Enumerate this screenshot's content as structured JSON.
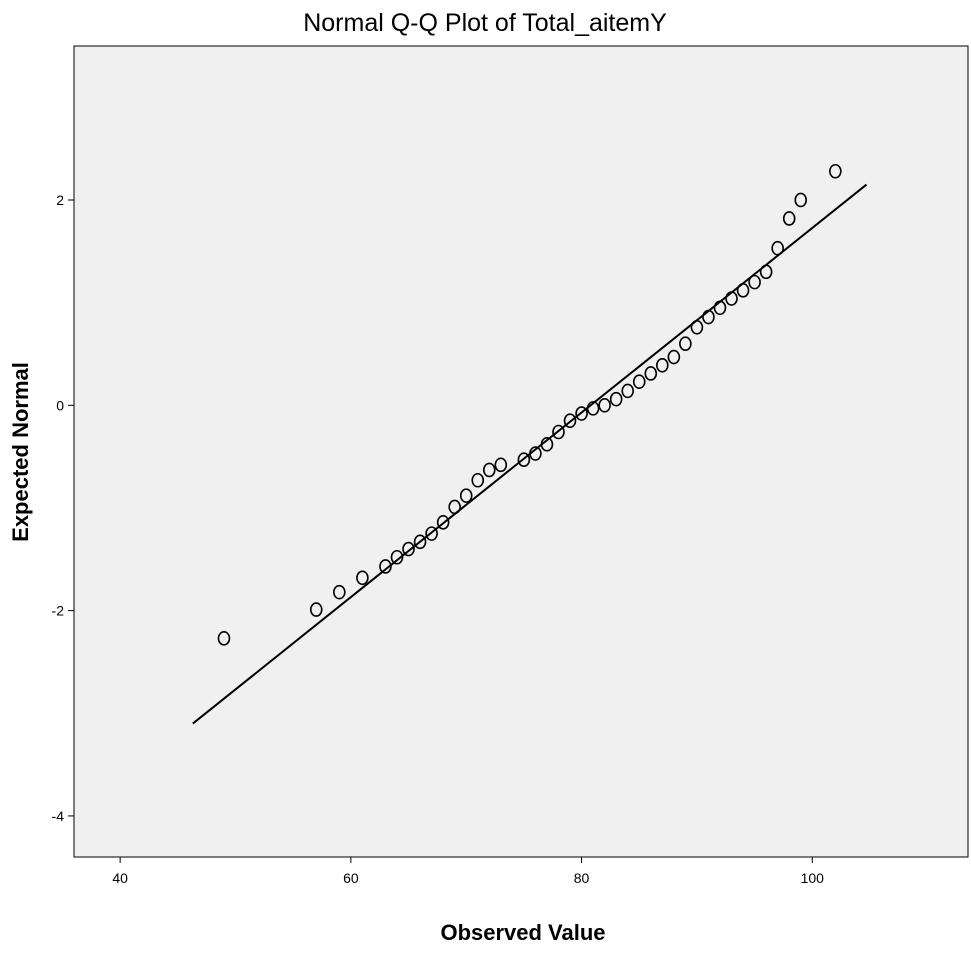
{
  "chart_data": {
    "type": "scatter",
    "title": "Normal Q-Q Plot of Total_aitemY",
    "xlabel": "Observed Value",
    "ylabel": "Expected Normal",
    "xlim": [
      36,
      113.5
    ],
    "ylim": [
      -4.4,
      3.5
    ],
    "xticks": [
      40,
      60,
      80,
      100
    ],
    "yticks": [
      -4,
      -2,
      0,
      2
    ],
    "xtick_labels": [
      "40",
      "60",
      "80",
      "100"
    ],
    "ytick_labels": [
      "-4",
      "-2",
      "0",
      "2"
    ],
    "grid": false,
    "legend": "none",
    "plot_background": "#f0f0f0",
    "marker_color": "#000000",
    "line_color": "#000000",
    "reference_line": {
      "x": [
        46.3,
        104.7
      ],
      "y": [
        -3.1,
        2.15
      ]
    },
    "series": [
      {
        "x": [
          49,
          57,
          59,
          61,
          63,
          64,
          65,
          66,
          67,
          68,
          69,
          70,
          71,
          72,
          73,
          75,
          76,
          77,
          78,
          79,
          80,
          81,
          82,
          83,
          84,
          85,
          86,
          87,
          88,
          89,
          90,
          91,
          92,
          93,
          94,
          95,
          96,
          97,
          98,
          99,
          102
        ],
        "y": [
          -2.27,
          -1.99,
          -1.82,
          -1.68,
          -1.57,
          -1.48,
          -1.4,
          -1.33,
          -1.25,
          -1.14,
          -0.99,
          -0.88,
          -0.73,
          -0.63,
          -0.58,
          -0.53,
          -0.47,
          -0.38,
          -0.26,
          -0.15,
          -0.08,
          -0.03,
          0.0,
          0.06,
          0.14,
          0.23,
          0.31,
          0.39,
          0.47,
          0.6,
          0.76,
          0.86,
          0.95,
          1.04,
          1.12,
          1.2,
          1.3,
          1.53,
          1.82,
          2.0,
          2.28
        ]
      }
    ]
  }
}
